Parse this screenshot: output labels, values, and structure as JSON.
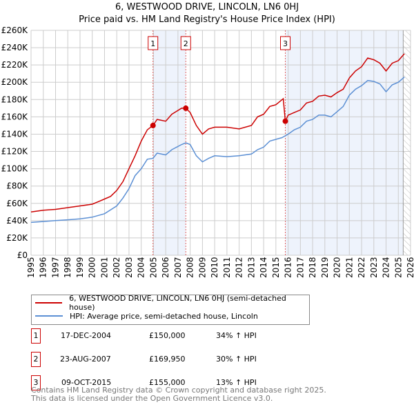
{
  "title": "6, WESTWOOD DRIVE, LINCOLN, LN6 0HJ",
  "subtitle": "Price paid vs. HM Land Registry's House Price Index (HPI)",
  "colors": {
    "property": "#cc0000",
    "hpi": "#5b8fd4",
    "shade": "#eef3fc"
  },
  "chart_data": {
    "type": "line",
    "title": "6, WESTWOOD DRIVE, LINCOLN, LN6 0HJ",
    "xlim": [
      1995,
      2026
    ],
    "ylim": [
      0,
      260000
    ],
    "y_ticks": [
      {
        "v": 0,
        "label": "£0"
      },
      {
        "v": 20000,
        "label": "£20K"
      },
      {
        "v": 40000,
        "label": "£40K"
      },
      {
        "v": 60000,
        "label": "£60K"
      },
      {
        "v": 80000,
        "label": "£80K"
      },
      {
        "v": 100000,
        "label": "£100K"
      },
      {
        "v": 120000,
        "label": "£120K"
      },
      {
        "v": 140000,
        "label": "£140K"
      },
      {
        "v": 160000,
        "label": "£160K"
      },
      {
        "v": 180000,
        "label": "£180K"
      },
      {
        "v": 200000,
        "label": "£200K"
      },
      {
        "v": 220000,
        "label": "£220K"
      },
      {
        "v": 240000,
        "label": "£240K"
      },
      {
        "v": 260000,
        "label": "£260K"
      }
    ],
    "x_ticks": [
      "1995",
      "1996",
      "1997",
      "1998",
      "1999",
      "2000",
      "2001",
      "2002",
      "2003",
      "2004",
      "2005",
      "2006",
      "2007",
      "2008",
      "2009",
      "2010",
      "2011",
      "2012",
      "2013",
      "2014",
      "2015",
      "2016",
      "2017",
      "2018",
      "2019",
      "2020",
      "2021",
      "2022",
      "2023",
      "2024",
      "2025",
      "2026"
    ],
    "forecast_start": 2025.4,
    "series": [
      {
        "name": "6, WESTWOOD DRIVE, LINCOLN, LN6 0HJ (semi-detached house)",
        "color": "#cc0000",
        "x": [
          1995,
          1996,
          1997,
          1998,
          1999,
          2000,
          2000.5,
          2001,
          2001.5,
          2002,
          2002.5,
          2003,
          2003.5,
          2004,
          2004.5,
          2004.96,
          2005.3,
          2006,
          2006.5,
          2007.3,
          2007.64,
          2008,
          2008.5,
          2009,
          2009.5,
          2010,
          2011,
          2012,
          2013,
          2013.5,
          2014,
          2014.5,
          2015,
          2015.6,
          2015.77,
          2016,
          2016.5,
          2017,
          2017.5,
          2018,
          2018.5,
          2019,
          2019.5,
          2020,
          2020.5,
          2021,
          2021.5,
          2022,
          2022.5,
          2023,
          2023.5,
          2024,
          2024.5,
          2025,
          2025.5
        ],
        "y": [
          50000,
          52000,
          53000,
          55000,
          57000,
          59000,
          62000,
          65000,
          68000,
          75000,
          85000,
          100000,
          115000,
          132000,
          145000,
          150000,
          157000,
          155000,
          163000,
          170000,
          169950,
          165000,
          150000,
          140000,
          146000,
          148000,
          148000,
          146000,
          150000,
          160000,
          163000,
          172000,
          174000,
          181000,
          155000,
          162000,
          165000,
          168000,
          176000,
          178000,
          184000,
          185000,
          183000,
          188000,
          192000,
          205000,
          213000,
          218000,
          228000,
          226000,
          222000,
          213000,
          222000,
          225000,
          233000
        ]
      },
      {
        "name": "HPI: Average price, semi-detached house, Lincoln",
        "color": "#5b8fd4",
        "x": [
          1995,
          1996,
          1997,
          1998,
          1999,
          2000,
          2001,
          2002,
          2002.5,
          2003,
          2003.5,
          2004,
          2004.5,
          2004.96,
          2005.3,
          2006,
          2006.5,
          2007.3,
          2007.64,
          2008,
          2008.5,
          2009,
          2009.5,
          2010,
          2011,
          2012,
          2013,
          2013.5,
          2014,
          2014.5,
          2015,
          2015.5,
          2016,
          2016.5,
          2017,
          2017.5,
          2018,
          2018.5,
          2019,
          2019.5,
          2020,
          2020.5,
          2021,
          2021.5,
          2022,
          2022.5,
          2023,
          2023.5,
          2024,
          2024.5,
          2025,
          2025.5
        ],
        "y": [
          38000,
          39000,
          40000,
          41000,
          42000,
          44000,
          48000,
          57000,
          66000,
          77000,
          92000,
          100000,
          111000,
          112000,
          118000,
          116000,
          122000,
          128000,
          130000,
          128000,
          115000,
          108000,
          112000,
          115000,
          114000,
          115000,
          117000,
          122000,
          125000,
          132000,
          134000,
          136000,
          140000,
          145000,
          148000,
          155000,
          157000,
          162000,
          162000,
          160000,
          166000,
          172000,
          185000,
          192000,
          196000,
          202000,
          201000,
          198000,
          189000,
          197000,
          200000,
          206000
        ]
      }
    ],
    "sales": [
      {
        "n": "1",
        "x": 2004.96,
        "price": 150000
      },
      {
        "n": "2",
        "x": 2007.64,
        "price": 169950
      },
      {
        "n": "3",
        "x": 2015.77,
        "price": 155000
      }
    ]
  },
  "legend": {
    "property": "6, WESTWOOD DRIVE, LINCOLN, LN6 0HJ (semi-detached house)",
    "hpi": "HPI: Average price, semi-detached house, Lincoln"
  },
  "sales_table": [
    {
      "n": "1",
      "date": "17-DEC-2004",
      "price": "£150,000",
      "hpi": "34% ↑ HPI"
    },
    {
      "n": "2",
      "date": "23-AUG-2007",
      "price": "£169,950",
      "hpi": "30% ↑ HPI"
    },
    {
      "n": "3",
      "date": "09-OCT-2015",
      "price": "£155,000",
      "hpi": "13% ↑ HPI"
    }
  ],
  "footer": {
    "line1": "Contains HM Land Registry data © Crown copyright and database right 2025.",
    "line2": "This data is licensed under the Open Government Licence v3.0."
  }
}
